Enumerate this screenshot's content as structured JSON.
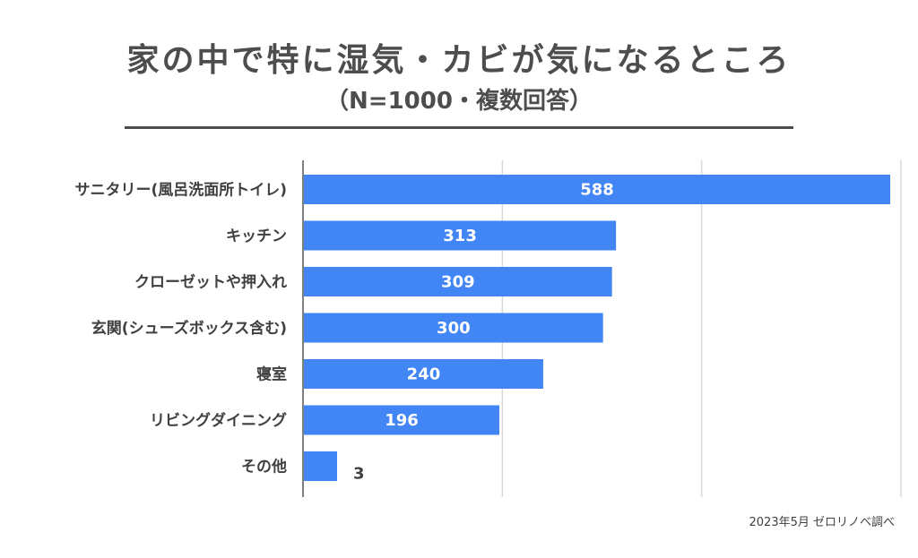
{
  "chart_data": {
    "type": "bar",
    "orientation": "horizontal",
    "title": "家の中で特に湿気・カビが気になるところ",
    "subtitle": "（N=1000・複数回答）",
    "categories": [
      "サニタリー(風呂洗面所トイレ)",
      "キッチン",
      "クローゼットや押入れ",
      "玄関(シューズボックス含む)",
      "寝室",
      "リビングダイニング",
      "その他"
    ],
    "values": [
      588,
      313,
      309,
      300,
      240,
      196,
      3
    ],
    "xlim": [
      0,
      600
    ],
    "grid": true,
    "bar_color": "#4285f4",
    "footnote": "2023年5月 ゼロリノベ調べ"
  }
}
